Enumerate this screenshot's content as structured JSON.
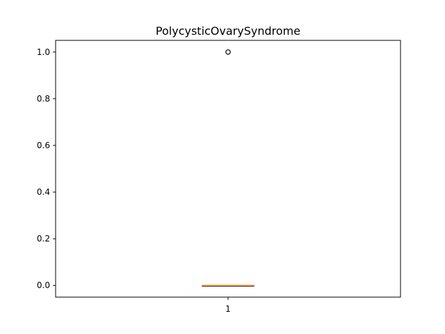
{
  "chart_data": {
    "type": "box",
    "title": "PolycysticOvarySyndrome",
    "xlabel": "",
    "ylabel": "",
    "categories": [
      "1"
    ],
    "ylim": [
      -0.05,
      1.05
    ],
    "yticks": [
      0.0,
      0.2,
      0.4,
      0.6,
      0.8,
      1.0
    ],
    "ytick_labels": [
      "0.0",
      "0.2",
      "0.4",
      "0.6",
      "0.8",
      "1.0"
    ],
    "xtick_labels": [
      "1"
    ],
    "boxes": [
      {
        "category": "1",
        "min": 0.0,
        "q1": 0.0,
        "median": 0.0,
        "q3": 0.0,
        "max": 0.0,
        "outliers": [
          1.0
        ]
      }
    ],
    "grid": false,
    "colors": {
      "box": "#000000",
      "median": "#ff7f0e",
      "outlier": "#000000"
    }
  }
}
